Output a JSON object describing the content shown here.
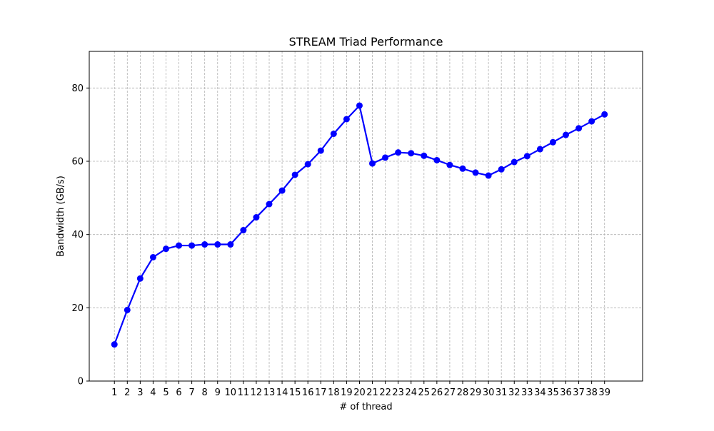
{
  "chart_data": {
    "type": "line",
    "title": "STREAM Triad Performance",
    "xlabel": "# of thread",
    "ylabel": "Bandwidth (GB/s)",
    "x": [
      1,
      2,
      3,
      4,
      5,
      6,
      7,
      8,
      9,
      10,
      11,
      12,
      13,
      14,
      15,
      16,
      17,
      18,
      19,
      20,
      21,
      22,
      23,
      24,
      25,
      26,
      27,
      28,
      29,
      30,
      31,
      32,
      33,
      34,
      35,
      36,
      37,
      38,
      39
    ],
    "series": [
      {
        "values": [
          10.0,
          19.4,
          28.0,
          33.8,
          36.1,
          37.0,
          37.0,
          37.3,
          37.3,
          37.3,
          41.2,
          44.7,
          48.3,
          52.0,
          56.3,
          59.2,
          62.9,
          67.5,
          71.5,
          75.2,
          59.4,
          61.0,
          62.4,
          62.2,
          61.5,
          60.3,
          59.0,
          58.0,
          56.9,
          56.1,
          57.8,
          59.8,
          61.4,
          63.3,
          65.2,
          67.2,
          69.0,
          70.9,
          72.8
        ],
        "color": "#0000ff"
      }
    ],
    "xlim": [
      -0.95,
      41.95
    ],
    "ylim": [
      0,
      90
    ],
    "yticks": [
      0,
      20,
      40,
      60,
      80
    ],
    "grid": true,
    "legend": "none"
  }
}
